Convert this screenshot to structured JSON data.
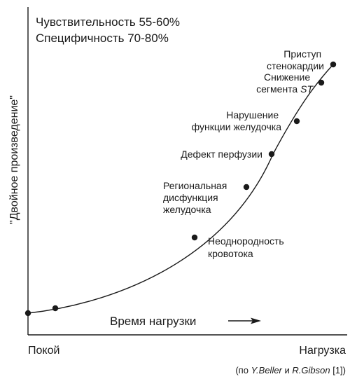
{
  "header": {
    "sensitivity": "Чувствительность 55-60%",
    "specificity": "Специфичность 70-80%"
  },
  "axes": {
    "y_label": "\"Двойное произведение\"",
    "x_arrow_label": "Время нагрузки",
    "x_start": "Покой",
    "x_end": "Нагрузка"
  },
  "stages": [
    {
      "id": "rest-start",
      "lines": []
    },
    {
      "id": "early-load",
      "lines": []
    },
    {
      "id": "perfusion-heterogeneity",
      "lines": [
        "Неоднородность",
        "кровотока"
      ]
    },
    {
      "id": "regional-dysfunction",
      "lines": [
        "Региональная",
        "дисфункция",
        "желудочка"
      ]
    },
    {
      "id": "perfusion-defect",
      "lines": [
        "Дефект перфузии"
      ]
    },
    {
      "id": "ventricular-dysfunction",
      "lines": [
        "Нарушение",
        "функции желудочка"
      ]
    },
    {
      "id": "st-depression",
      "lines": [
        "Снижение",
        "сегмента ST"
      ]
    },
    {
      "id": "angina",
      "lines": [
        "Приступ",
        "стенокардии"
      ]
    }
  ],
  "source": {
    "prefix": "(по ",
    "author1": "Y.Beller",
    "and": " и ",
    "author2": "R.Gibson",
    "suffix": " [1])"
  }
}
